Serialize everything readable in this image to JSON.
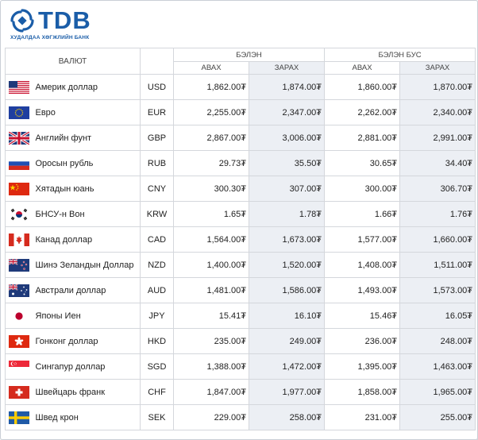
{
  "brand": {
    "logo_text": "TDB",
    "subtitle": "ХУДАЛДАА ХӨГЖЛИЙН БАНК",
    "color": "#1a5da8"
  },
  "table": {
    "header": {
      "currency": "ВАЛЮТ",
      "cash": "БЭЛЭН",
      "noncash": "БЭЛЭН БУС",
      "buy": "АВАХ",
      "sell": "ЗАРАХ"
    },
    "rows": [
      {
        "flag": "flag-usa",
        "name": "Америк доллар",
        "code": "USD",
        "cash_buy": "1,862.00₮",
        "cash_sell": "1,874.00₮",
        "noncash_buy": "1,860.00₮",
        "noncash_sell": "1,870.00₮"
      },
      {
        "flag": "flag-eu",
        "name": "Евро",
        "code": "EUR",
        "cash_buy": "2,255.00₮",
        "cash_sell": "2,347.00₮",
        "noncash_buy": "2,262.00₮",
        "noncash_sell": "2,340.00₮"
      },
      {
        "flag": "flag-uk",
        "name": "Английн фунт",
        "code": "GBP",
        "cash_buy": "2,867.00₮",
        "cash_sell": "3,006.00₮",
        "noncash_buy": "2,881.00₮",
        "noncash_sell": "2,991.00₮"
      },
      {
        "flag": "flag-russia",
        "name": "Оросын рубль",
        "code": "RUB",
        "cash_buy": "29.73₮",
        "cash_sell": "35.50₮",
        "noncash_buy": "30.65₮",
        "noncash_sell": "34.40₮"
      },
      {
        "flag": "flag-china",
        "name": "Хятадын юань",
        "code": "CNY",
        "cash_buy": "300.30₮",
        "cash_sell": "307.00₮",
        "noncash_buy": "300.00₮",
        "noncash_sell": "306.70₮"
      },
      {
        "flag": "flag-south-korea",
        "name": "БНСУ-н Вон",
        "code": "KRW",
        "cash_buy": "1.65₮",
        "cash_sell": "1.78₮",
        "noncash_buy": "1.66₮",
        "noncash_sell": "1.76₮"
      },
      {
        "flag": "flag-canada",
        "name": "Канад доллар",
        "code": "CAD",
        "cash_buy": "1,564.00₮",
        "cash_sell": "1,673.00₮",
        "noncash_buy": "1,577.00₮",
        "noncash_sell": "1,660.00₮"
      },
      {
        "flag": "flag-new-zealand",
        "name": "Шинэ Зеландын Доллар",
        "code": "NZD",
        "cash_buy": "1,400.00₮",
        "cash_sell": "1,520.00₮",
        "noncash_buy": "1,408.00₮",
        "noncash_sell": "1,511.00₮"
      },
      {
        "flag": "flag-australia",
        "name": "Австрали доллар",
        "code": "AUD",
        "cash_buy": "1,481.00₮",
        "cash_sell": "1,586.00₮",
        "noncash_buy": "1,493.00₮",
        "noncash_sell": "1,573.00₮"
      },
      {
        "flag": "flag-japan",
        "name": "Японы Иен",
        "code": "JPY",
        "cash_buy": "15.41₮",
        "cash_sell": "16.10₮",
        "noncash_buy": "15.46₮",
        "noncash_sell": "16.05₮"
      },
      {
        "flag": "flag-hong-kong",
        "name": "Гонконг доллар",
        "code": "HKD",
        "cash_buy": "235.00₮",
        "cash_sell": "249.00₮",
        "noncash_buy": "236.00₮",
        "noncash_sell": "248.00₮"
      },
      {
        "flag": "flag-singapore",
        "name": "Сингапур доллар",
        "code": "SGD",
        "cash_buy": "1,388.00₮",
        "cash_sell": "1,472.00₮",
        "noncash_buy": "1,395.00₮",
        "noncash_sell": "1,463.00₮"
      },
      {
        "flag": "flag-switzerland",
        "name": "Швейцарь франк",
        "code": "CHF",
        "cash_buy": "1,847.00₮",
        "cash_sell": "1,977.00₮",
        "noncash_buy": "1,858.00₮",
        "noncash_sell": "1,965.00₮"
      },
      {
        "flag": "flag-sweden",
        "name": "Швед крон",
        "code": "SEK",
        "cash_buy": "229.00₮",
        "cash_sell": "258.00₮",
        "noncash_buy": "231.00₮",
        "noncash_sell": "255.00₮"
      }
    ]
  }
}
